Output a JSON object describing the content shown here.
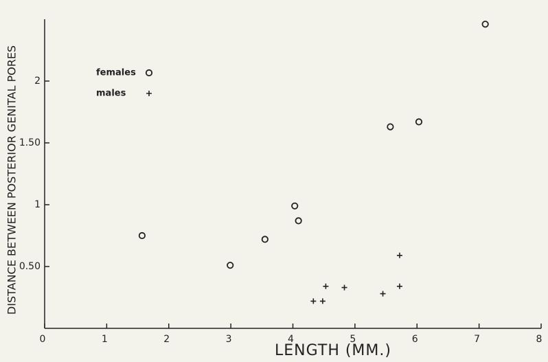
{
  "chart_data": {
    "type": "scatter",
    "xlabel": "LENGTH (MM.)",
    "ylabel": "DISTANCE BETWEEN POSTERIOR GENITAL PORES",
    "xlim": [
      0,
      8
    ],
    "ylim": [
      0,
      2.5
    ],
    "xticks": [
      0,
      1,
      2,
      3,
      4,
      5,
      6,
      7,
      8
    ],
    "yticks": [
      {
        "value": 0.5,
        "label": "0.50"
      },
      1,
      {
        "value": 1.5,
        "label": "1.50"
      },
      2
    ],
    "legend": "upper left",
    "series": [
      {
        "name": "females",
        "marker": "circle",
        "color": "#222222",
        "x": [
          1.57,
          2.99,
          3.55,
          4.03,
          4.09,
          5.57,
          6.03,
          7.1
        ],
        "values": [
          0.75,
          0.51,
          0.72,
          0.99,
          0.87,
          1.63,
          1.67,
          2.46
        ]
      },
      {
        "name": "males",
        "marker": "plus",
        "color": "#222222",
        "x": [
          4.33,
          4.48,
          4.53,
          4.83,
          5.45,
          5.72,
          5.72
        ],
        "values": [
          0.22,
          0.22,
          0.34,
          0.33,
          0.28,
          0.59,
          0.34
        ]
      }
    ]
  }
}
